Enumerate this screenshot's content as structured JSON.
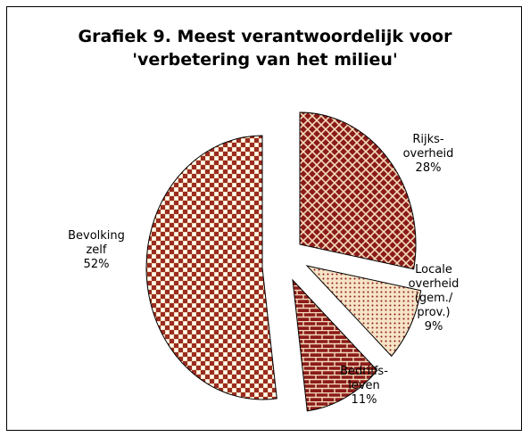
{
  "chart_data": {
    "type": "pie",
    "title": "Grafiek 9. Meest verantwoordelijk voor\n'verbetering van het milieu'",
    "slices": [
      {
        "label": [
          "Rijks-",
          "overheid"
        ],
        "value_label": "28%",
        "value": 28,
        "color": "#8b1a1a",
        "pattern": "crosshatch",
        "exploded": true
      },
      {
        "label": [
          "Locale",
          "overheid",
          "(gem./",
          "prov.)"
        ],
        "value_label": "9%",
        "value": 9,
        "color": "#f3dcb8",
        "pattern": "dots",
        "exploded": true
      },
      {
        "label": [
          "Bedrijfs-",
          "leven"
        ],
        "value_label": "11%",
        "value": 11,
        "color": "#8b1a1a",
        "pattern": "bricks",
        "exploded": true
      },
      {
        "label": [
          "Bevolking",
          "zelf"
        ],
        "value_label": "52%",
        "value": 52,
        "color": "#f3dcb8",
        "pattern": "checker",
        "exploded": true
      }
    ]
  }
}
